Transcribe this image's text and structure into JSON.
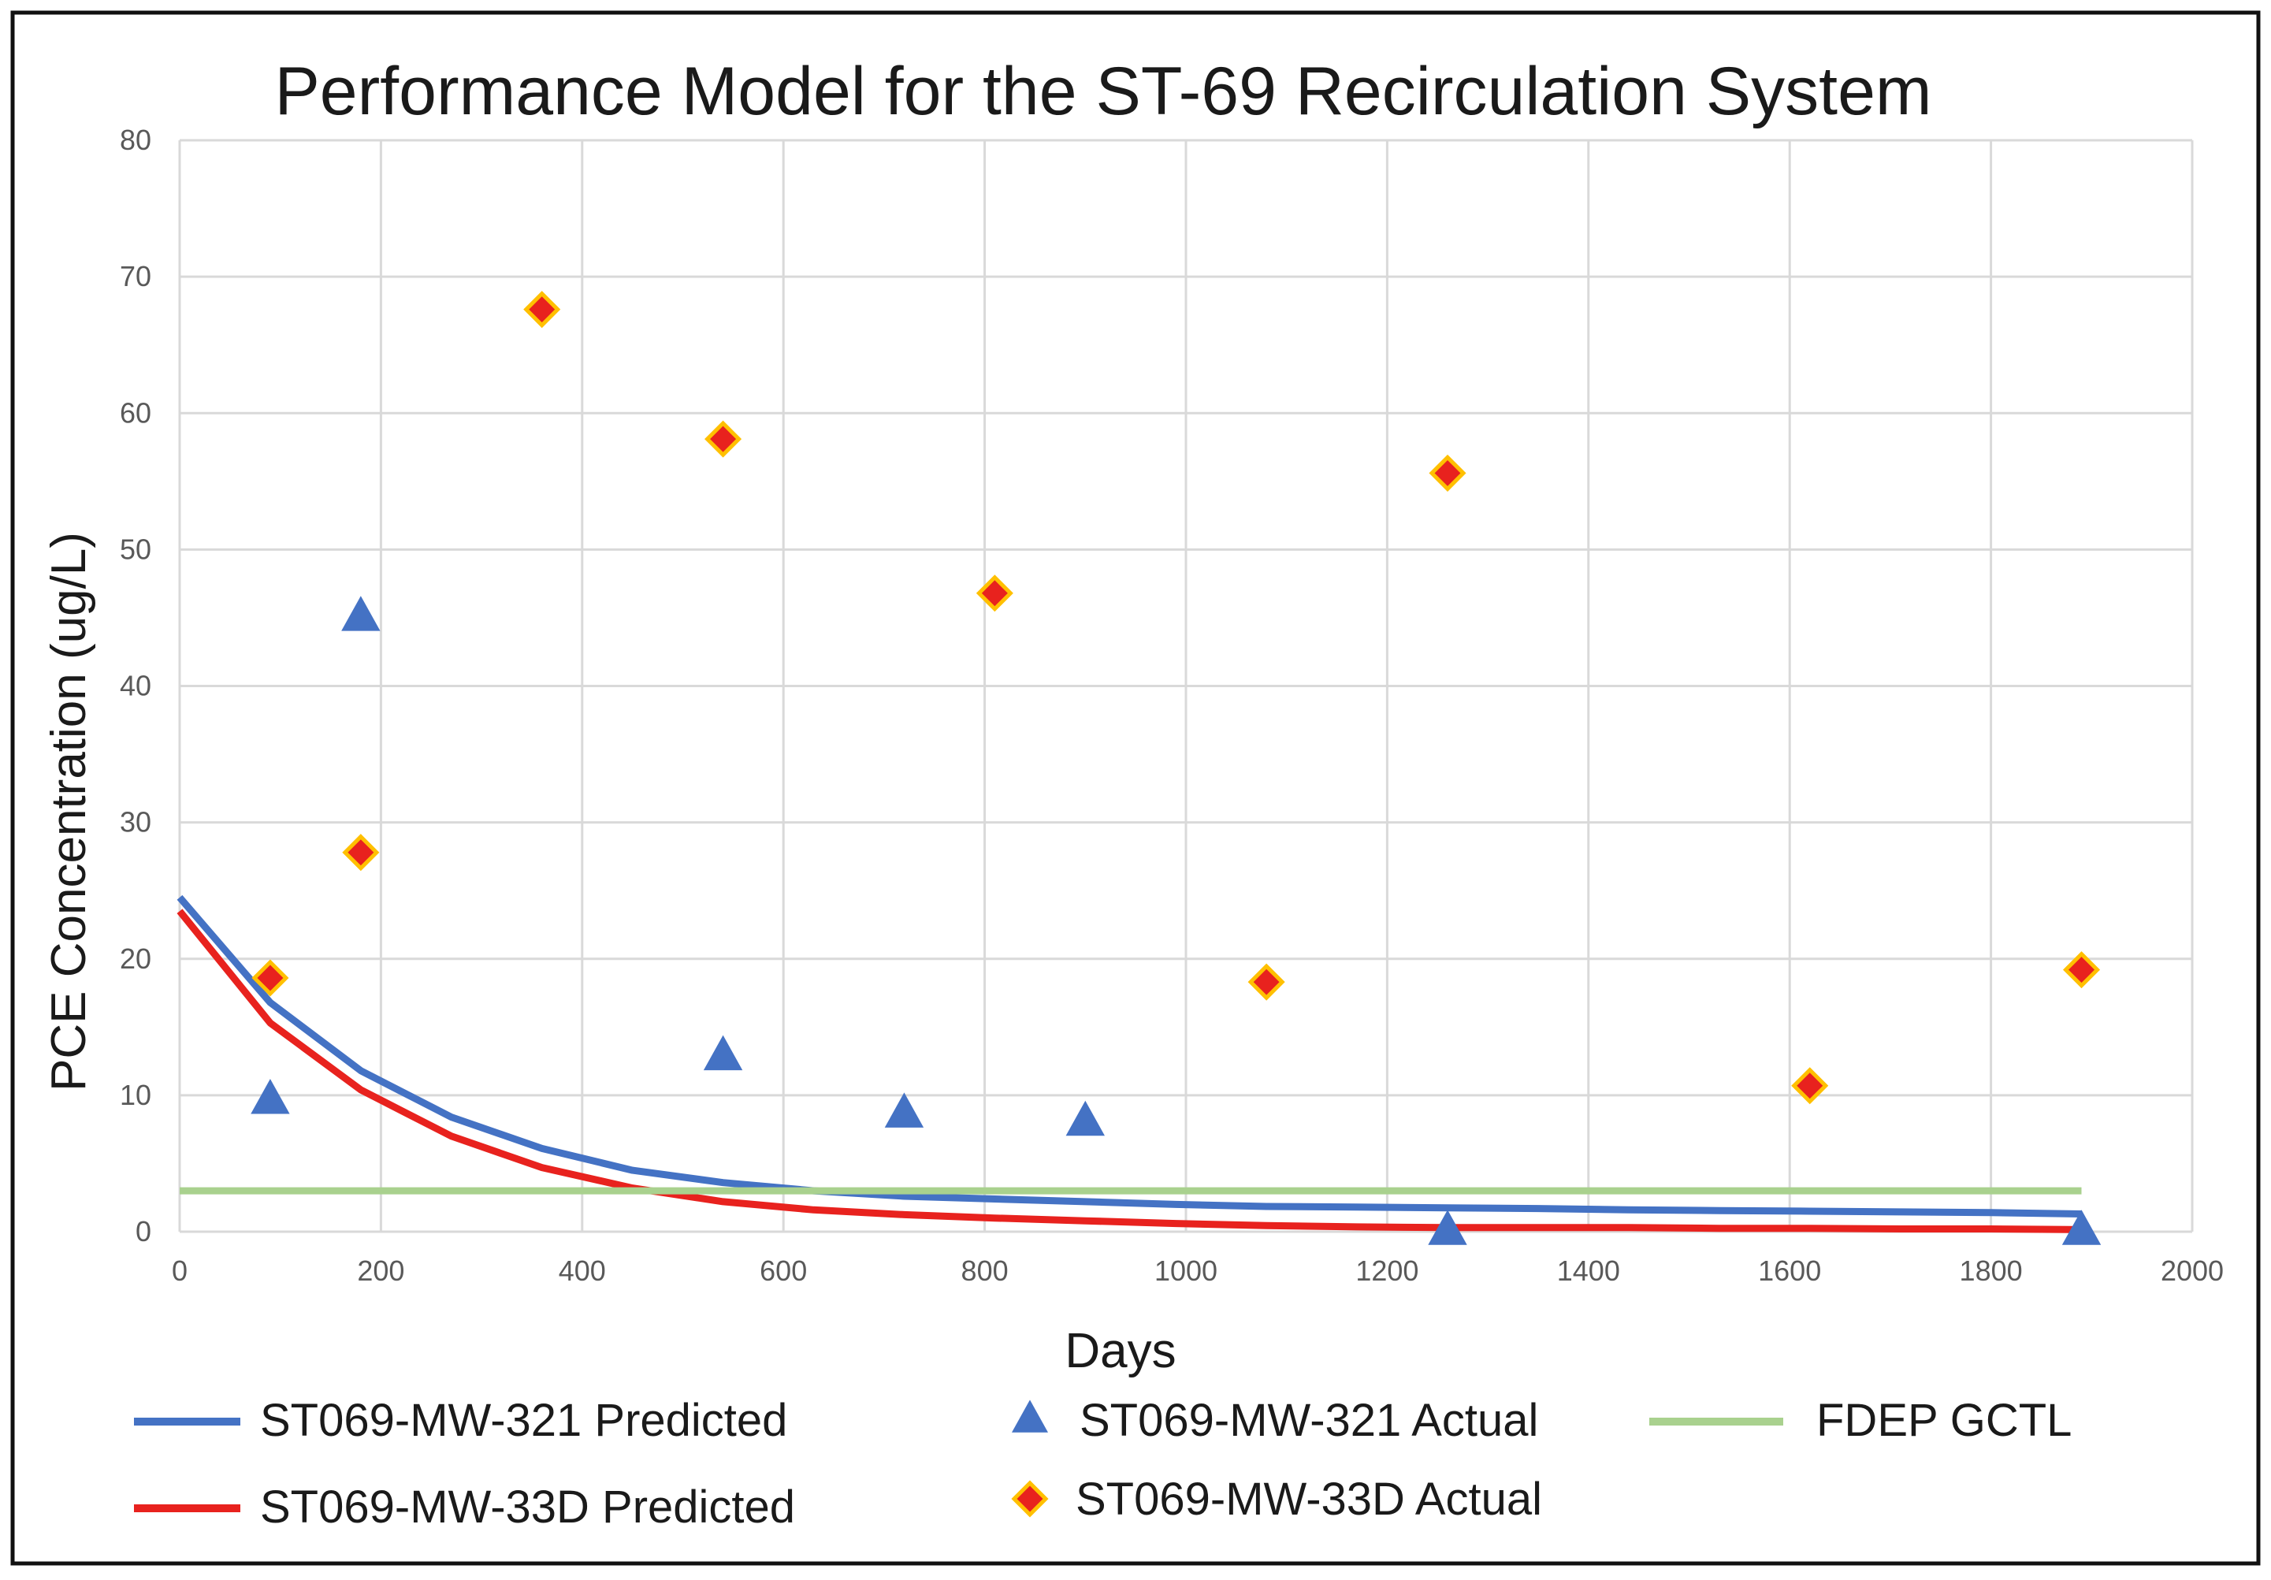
{
  "chart_data": {
    "type": "scatter",
    "title": "Performance Model for the ST-69 Recirculation System",
    "xlabel": "Days",
    "ylabel": "PCE Concentration (ug/L)",
    "xlim": [
      0,
      2000
    ],
    "ylim": [
      0,
      80
    ],
    "x_ticks": [
      0,
      200,
      400,
      600,
      800,
      1000,
      1200,
      1400,
      1600,
      1800,
      2000
    ],
    "y_ticks": [
      0,
      10,
      20,
      30,
      40,
      50,
      60,
      70,
      80
    ],
    "grid": true,
    "legend_position": "bottom",
    "series": [
      {
        "name": "ST069-MW-321 Predicted",
        "kind": "line",
        "color": "#4472c4",
        "x": [
          0,
          90,
          180,
          270,
          360,
          450,
          540,
          630,
          720,
          810,
          900,
          990,
          1080,
          1170,
          1260,
          1350,
          1440,
          1530,
          1620,
          1710,
          1800,
          1890
        ],
        "y": [
          24.5,
          16.8,
          11.8,
          8.4,
          6.1,
          4.5,
          3.6,
          3.0,
          2.6,
          2.4,
          2.2,
          2.0,
          1.85,
          1.8,
          1.75,
          1.7,
          1.6,
          1.55,
          1.5,
          1.45,
          1.4,
          1.3
        ]
      },
      {
        "name": "ST069-MW-33D Predicted",
        "kind": "line",
        "color": "#e8221e",
        "x": [
          0,
          90,
          180,
          270,
          360,
          450,
          540,
          630,
          720,
          810,
          900,
          990,
          1080,
          1170,
          1260,
          1350,
          1440,
          1530,
          1620,
          1710,
          1800,
          1890
        ],
        "y": [
          23.5,
          15.3,
          10.4,
          7.0,
          4.7,
          3.2,
          2.2,
          1.6,
          1.25,
          1.0,
          0.8,
          0.6,
          0.45,
          0.35,
          0.3,
          0.3,
          0.3,
          0.25,
          0.25,
          0.2,
          0.2,
          0.15
        ]
      },
      {
        "name": "FDEP GCTL",
        "kind": "line",
        "color": "#a9d18e",
        "x": [
          0,
          1890
        ],
        "y": [
          3,
          3
        ]
      },
      {
        "name": "ST069-MW-321 Actual",
        "kind": "marker",
        "marker": "triangle",
        "color": "#4472c4",
        "x": [
          90,
          180,
          540,
          720,
          900,
          1260,
          1890
        ],
        "y": [
          9.6,
          45.0,
          12.8,
          8.6,
          8.0,
          0,
          0
        ]
      },
      {
        "name": "ST069-MW-33D Actual",
        "kind": "marker",
        "marker": "diamond",
        "color": "#e8221e",
        "edge_color": "#ffc000",
        "x": [
          90,
          180,
          360,
          540,
          810,
          1080,
          1260,
          1620,
          1890
        ],
        "y": [
          18.6,
          27.8,
          67.6,
          58.1,
          46.8,
          18.3,
          55.6,
          10.7,
          19.2
        ]
      }
    ],
    "legend": [
      {
        "label": "ST069-MW-321 Predicted",
        "symbol": "line",
        "color": "#4472c4"
      },
      {
        "label": "ST069-MW-321 Actual",
        "symbol": "triangle",
        "color": "#4472c4"
      },
      {
        "label": "FDEP GCTL",
        "symbol": "line",
        "color": "#a9d18e"
      },
      {
        "label": "ST069-MW-33D Predicted",
        "symbol": "line",
        "color": "#e8221e"
      },
      {
        "label": "ST069-MW-33D Actual",
        "symbol": "diamond",
        "color": "#e8221e"
      }
    ]
  }
}
